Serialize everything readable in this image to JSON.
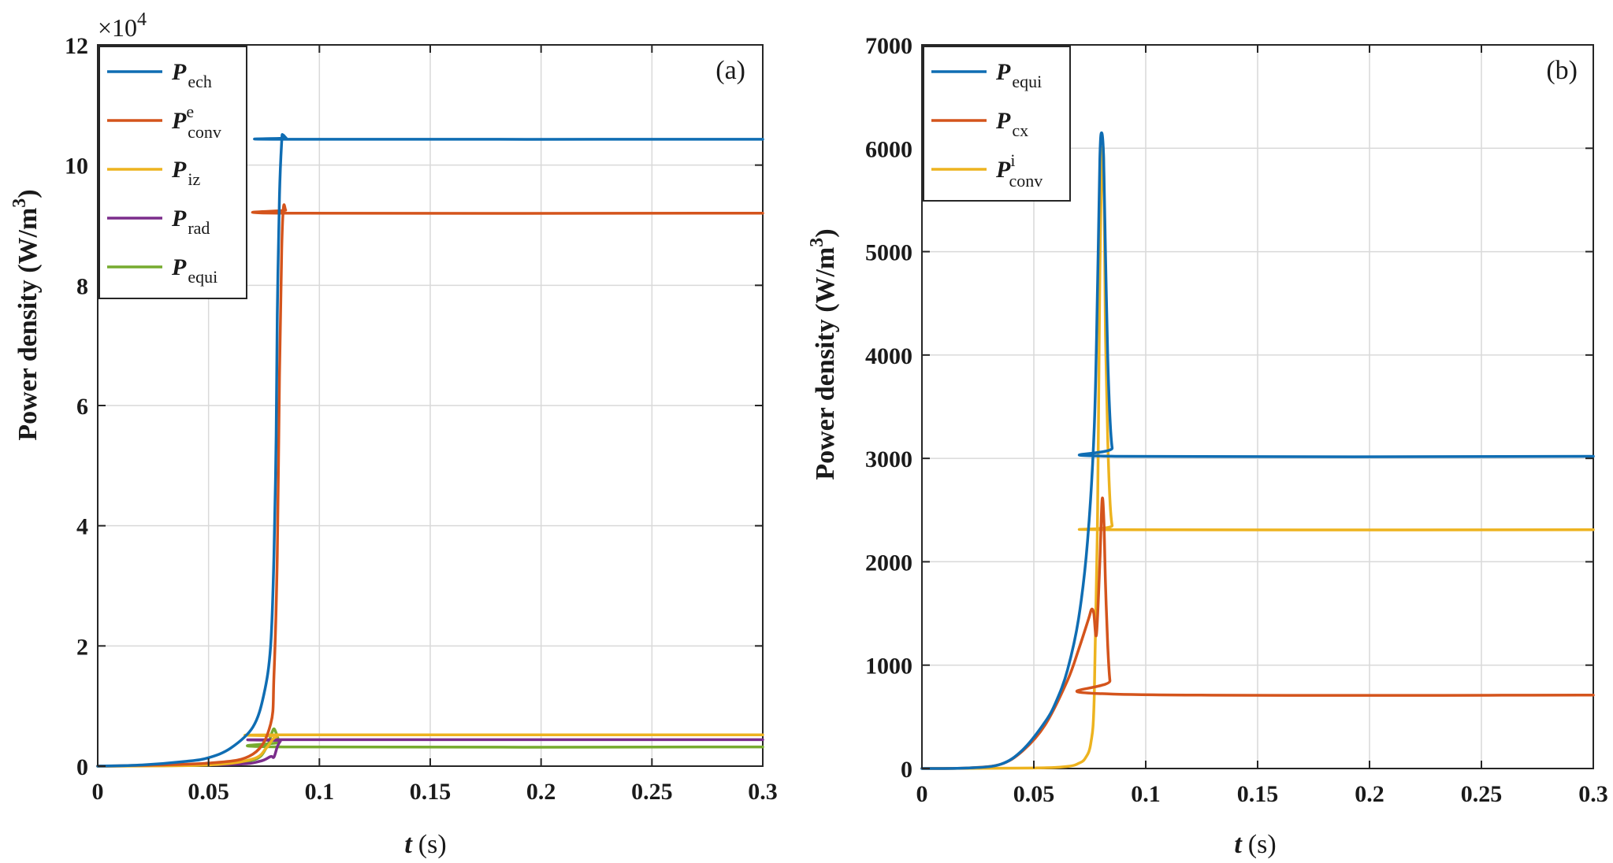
{
  "figure": {
    "colors": {
      "blue": "#0f6db3",
      "orange": "#d4541c",
      "yellow": "#edb31f",
      "purple": "#7b2d8b",
      "green": "#76ab2f",
      "grid": "#d9d9d9",
      "axis": "#262626"
    }
  },
  "chart_data": [
    {
      "type": "line",
      "panel_label": "(a)",
      "xlabel_var": "t",
      "xlabel_unit": "(s)",
      "ylabel": "Power density (W/m",
      "ylabel_sup": "3",
      "ylabel_close": ")",
      "exponent_label": "×10",
      "exponent_power": "4",
      "xlim": [
        0,
        0.3
      ],
      "ylim": [
        0,
        12
      ],
      "xticks": [
        0,
        0.05,
        0.1,
        0.15,
        0.2,
        0.25,
        0.3
      ],
      "xtick_labels": [
        "0",
        "0.05",
        "0.1",
        "0.15",
        "0.2",
        "0.25",
        "0.3"
      ],
      "yticks": [
        0,
        2,
        4,
        6,
        8,
        10,
        12
      ],
      "ytick_labels": [
        "0",
        "2",
        "4",
        "6",
        "8",
        "10",
        "12"
      ],
      "grid": true,
      "legend_position": "top-left",
      "series": [
        {
          "name": "P",
          "sub": "ech",
          "sup": "",
          "color": "blue",
          "points": [
            [
              0,
              0
            ],
            [
              0.02,
              0.02
            ],
            [
              0.04,
              0.08
            ],
            [
              0.05,
              0.14
            ],
            [
              0.06,
              0.3
            ],
            [
              0.07,
              0.65
            ],
            [
              0.075,
              1.2
            ],
            [
              0.078,
              2.0
            ],
            [
              0.0795,
              3.5
            ],
            [
              0.0805,
              5.5
            ],
            [
              0.081,
              7.5
            ],
            [
              0.082,
              9.5
            ],
            [
              0.083,
              10.4
            ],
            [
              0.0835,
              10.5
            ],
            [
              0.085,
              10.45
            ],
            [
              0.087,
              10.43
            ],
            [
              0.3,
              10.43
            ]
          ]
        },
        {
          "name": "P",
          "sub": "conv",
          "sup": "e",
          "color": "orange",
          "points": [
            [
              0,
              0
            ],
            [
              0.05,
              0.05
            ],
            [
              0.07,
              0.2
            ],
            [
              0.078,
              0.7
            ],
            [
              0.0795,
              1.5
            ],
            [
              0.081,
              3.5
            ],
            [
              0.082,
              6.5
            ],
            [
              0.083,
              8.6
            ],
            [
              0.0838,
              9.3
            ],
            [
              0.0848,
              9.25
            ],
            [
              0.086,
              9.2
            ],
            [
              0.3,
              9.2
            ]
          ]
        },
        {
          "name": "P",
          "sub": "iz",
          "sup": "",
          "color": "yellow",
          "points": [
            [
              0,
              0
            ],
            [
              0.05,
              0.02
            ],
            [
              0.07,
              0.12
            ],
            [
              0.076,
              0.3
            ],
            [
              0.079,
              0.45
            ],
            [
              0.081,
              0.5
            ],
            [
              0.083,
              0.52
            ],
            [
              0.3,
              0.52
            ]
          ]
        },
        {
          "name": "P",
          "sub": "rad",
          "sup": "",
          "color": "purple",
          "points": [
            [
              0,
              0
            ],
            [
              0.06,
              0.03
            ],
            [
              0.073,
              0.08
            ],
            [
              0.078,
              0.16
            ],
            [
              0.0795,
              0.15
            ],
            [
              0.081,
              0.32
            ],
            [
              0.0825,
              0.42
            ],
            [
              0.084,
              0.44
            ],
            [
              0.3,
              0.44
            ]
          ]
        },
        {
          "name": "P",
          "sub": "equi",
          "sup": "",
          "color": "green",
          "points": [
            [
              0,
              0
            ],
            [
              0.05,
              0.02
            ],
            [
              0.07,
              0.1
            ],
            [
              0.076,
              0.3
            ],
            [
              0.0785,
              0.55
            ],
            [
              0.0795,
              0.62
            ],
            [
              0.0805,
              0.55
            ],
            [
              0.082,
              0.4
            ],
            [
              0.084,
              0.32
            ],
            [
              0.3,
              0.32
            ]
          ]
        }
      ]
    },
    {
      "type": "line",
      "panel_label": "(b)",
      "xlabel_var": "t",
      "xlabel_unit": "(s)",
      "ylabel": "Power density (W/m",
      "ylabel_sup": "3",
      "ylabel_close": ")",
      "xlim": [
        0,
        0.3
      ],
      "ylim": [
        0,
        7000
      ],
      "xticks": [
        0,
        0.05,
        0.1,
        0.15,
        0.2,
        0.25,
        0.3
      ],
      "xtick_labels": [
        "0",
        "0.05",
        "0.1",
        "0.15",
        "0.2",
        "0.25",
        "0.3"
      ],
      "yticks": [
        0,
        1000,
        2000,
        3000,
        4000,
        5000,
        6000,
        7000
      ],
      "ytick_labels": [
        "0",
        "1000",
        "2000",
        "3000",
        "4000",
        "5000",
        "6000",
        "7000"
      ],
      "grid": true,
      "legend_position": "top-left",
      "series": [
        {
          "name": "P",
          "sub": "equi",
          "sup": "",
          "color": "blue",
          "points": [
            [
              0,
              0
            ],
            [
              0.02,
              5
            ],
            [
              0.035,
              40
            ],
            [
              0.045,
              180
            ],
            [
              0.055,
              450
            ],
            [
              0.06,
              650
            ],
            [
              0.065,
              950
            ],
            [
              0.07,
              1450
            ],
            [
              0.074,
              2200
            ],
            [
              0.077,
              3300
            ],
            [
              0.0785,
              4700
            ],
            [
              0.0795,
              5900
            ],
            [
              0.0803,
              6150
            ],
            [
              0.0812,
              5900
            ],
            [
              0.082,
              5000
            ],
            [
              0.083,
              4000
            ],
            [
              0.084,
              3400
            ],
            [
              0.085,
              3100
            ],
            [
              0.0865,
              3020
            ],
            [
              0.3,
              3020
            ]
          ]
        },
        {
          "name": "P",
          "sub": "cx",
          "sup": "",
          "color": "orange",
          "points": [
            [
              0,
              0
            ],
            [
              0.02,
              5
            ],
            [
              0.035,
              40
            ],
            [
              0.045,
              170
            ],
            [
              0.055,
              420
            ],
            [
              0.065,
              850
            ],
            [
              0.07,
              1150
            ],
            [
              0.0745,
              1450
            ],
            [
              0.0758,
              1540
            ],
            [
              0.0768,
              1500
            ],
            [
              0.078,
              1300
            ],
            [
              0.0795,
              2000
            ],
            [
              0.0805,
              2600
            ],
            [
              0.0813,
              2400
            ],
            [
              0.082,
              1800
            ],
            [
              0.083,
              1200
            ],
            [
              0.084,
              850
            ],
            [
              0.0855,
              720
            ],
            [
              0.3,
              710
            ]
          ]
        },
        {
          "name": "P",
          "sub": "conv",
          "sup": "i",
          "color": "yellow",
          "points": [
            [
              0,
              0
            ],
            [
              0.05,
              5
            ],
            [
              0.065,
              20
            ],
            [
              0.07,
              50
            ],
            [
              0.073,
              100
            ],
            [
              0.0755,
              250
            ],
            [
              0.077,
              700
            ],
            [
              0.0785,
              2500
            ],
            [
              0.0795,
              4800
            ],
            [
              0.0808,
              6000
            ],
            [
              0.0815,
              5400
            ],
            [
              0.082,
              4200
            ],
            [
              0.083,
              3200
            ],
            [
              0.084,
              2600
            ],
            [
              0.085,
              2350
            ],
            [
              0.0865,
              2310
            ],
            [
              0.3,
              2310
            ]
          ]
        }
      ]
    }
  ]
}
